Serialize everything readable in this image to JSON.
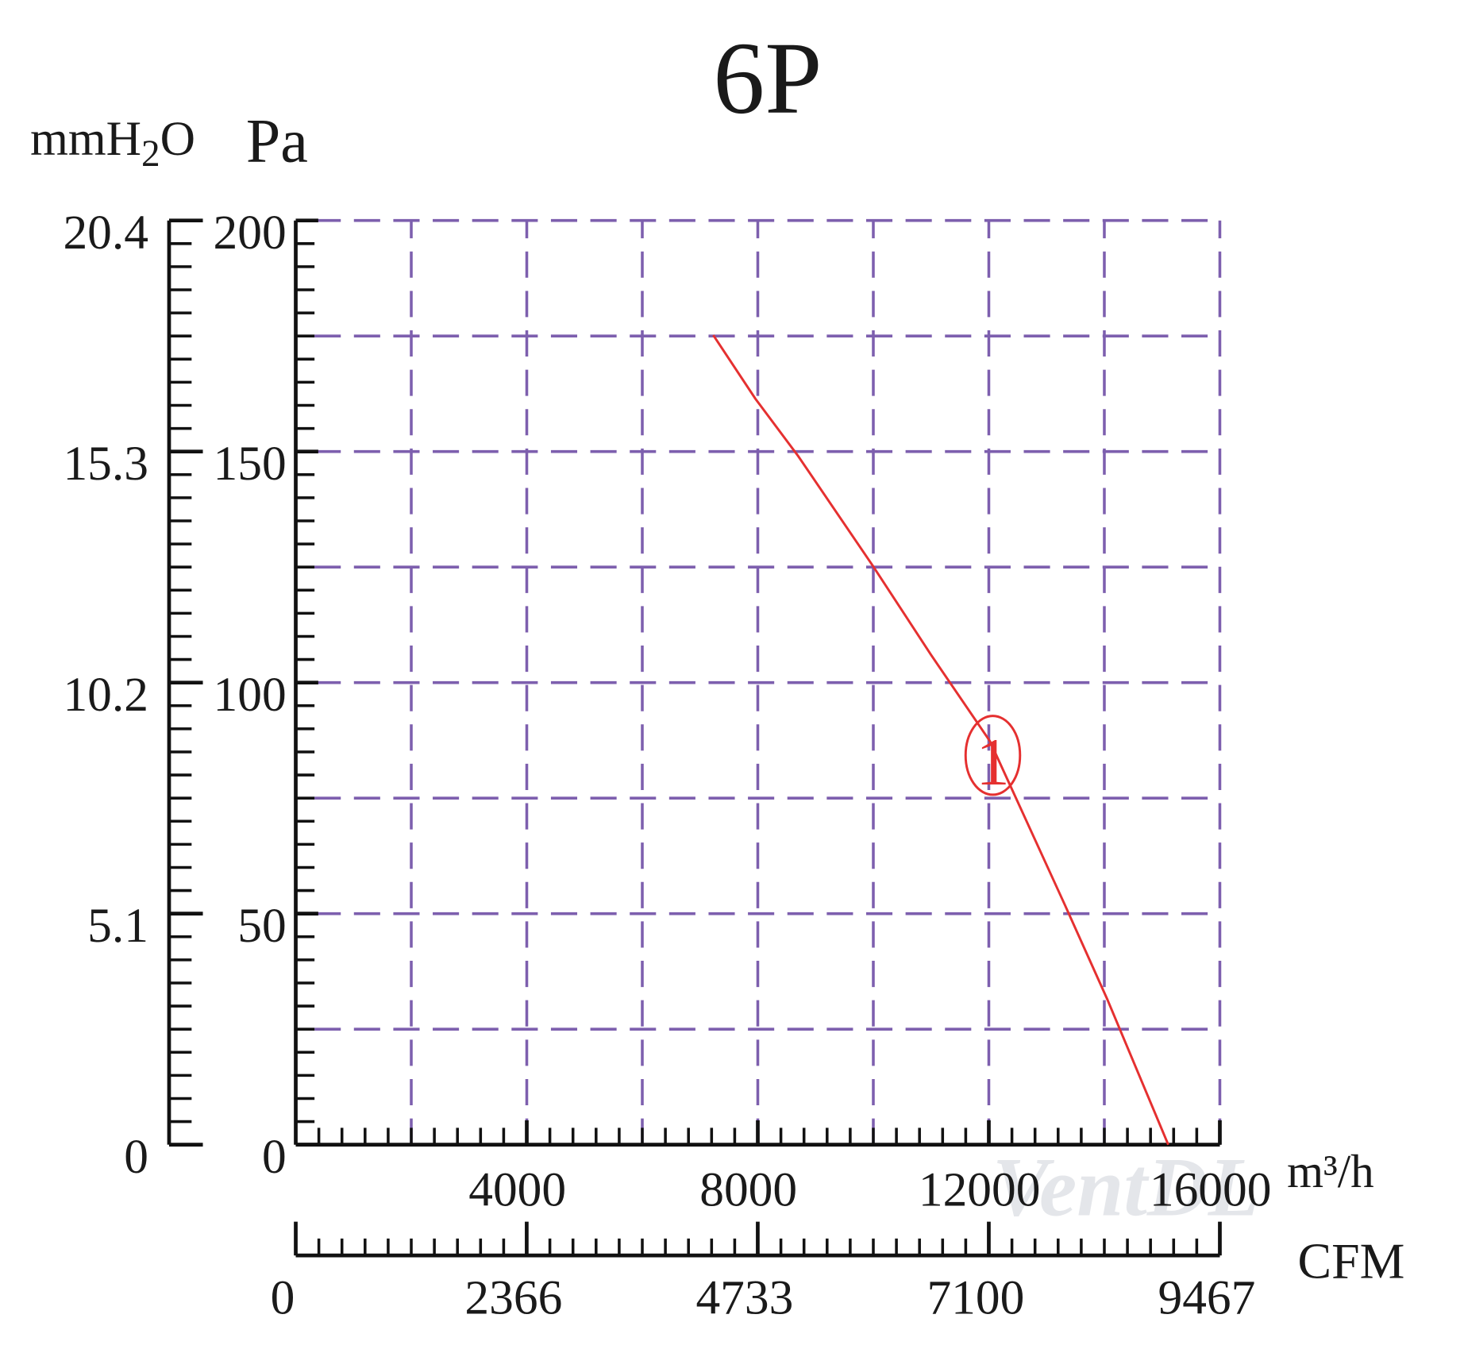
{
  "chart_data": {
    "type": "line",
    "title": "6P",
    "y_label": "Pa",
    "y2_label": {
      "main": "mmH",
      "sub": "2",
      "end": "O"
    },
    "x_label": "m³/h",
    "x2_label": "CFM",
    "watermark": "VentDL",
    "x": [
      7229,
      7960,
      8700,
      9990,
      11000,
      12020,
      13320,
      14050,
      15107
    ],
    "series": [
      {
        "name": "1",
        "color": "#e53030",
        "values": [
          175.2,
          161.4,
          149,
          125.3,
          106,
          87.3,
          51.8,
          31.5,
          0
        ]
      }
    ],
    "xlim": [
      0,
      16000
    ],
    "xticks": [
      4000,
      8000,
      12000,
      16000
    ],
    "ylim": [
      0,
      200
    ],
    "yticks": [
      0,
      50,
      100,
      150,
      200
    ],
    "y2lim": [
      0,
      20.4
    ],
    "y2ticks": [
      0,
      5.1,
      10.2,
      15.3,
      20.4
    ],
    "x2lim": [
      0,
      9467
    ],
    "x2ticks": [
      0,
      2366,
      4733,
      7100,
      9467
    ],
    "xgrid": [
      2000,
      4000,
      6000,
      8000,
      10000,
      12000,
      14000,
      16000
    ],
    "ygrid": [
      25,
      50,
      75,
      100,
      125,
      150,
      175,
      200
    ],
    "grid_color": "#7d5fae"
  }
}
